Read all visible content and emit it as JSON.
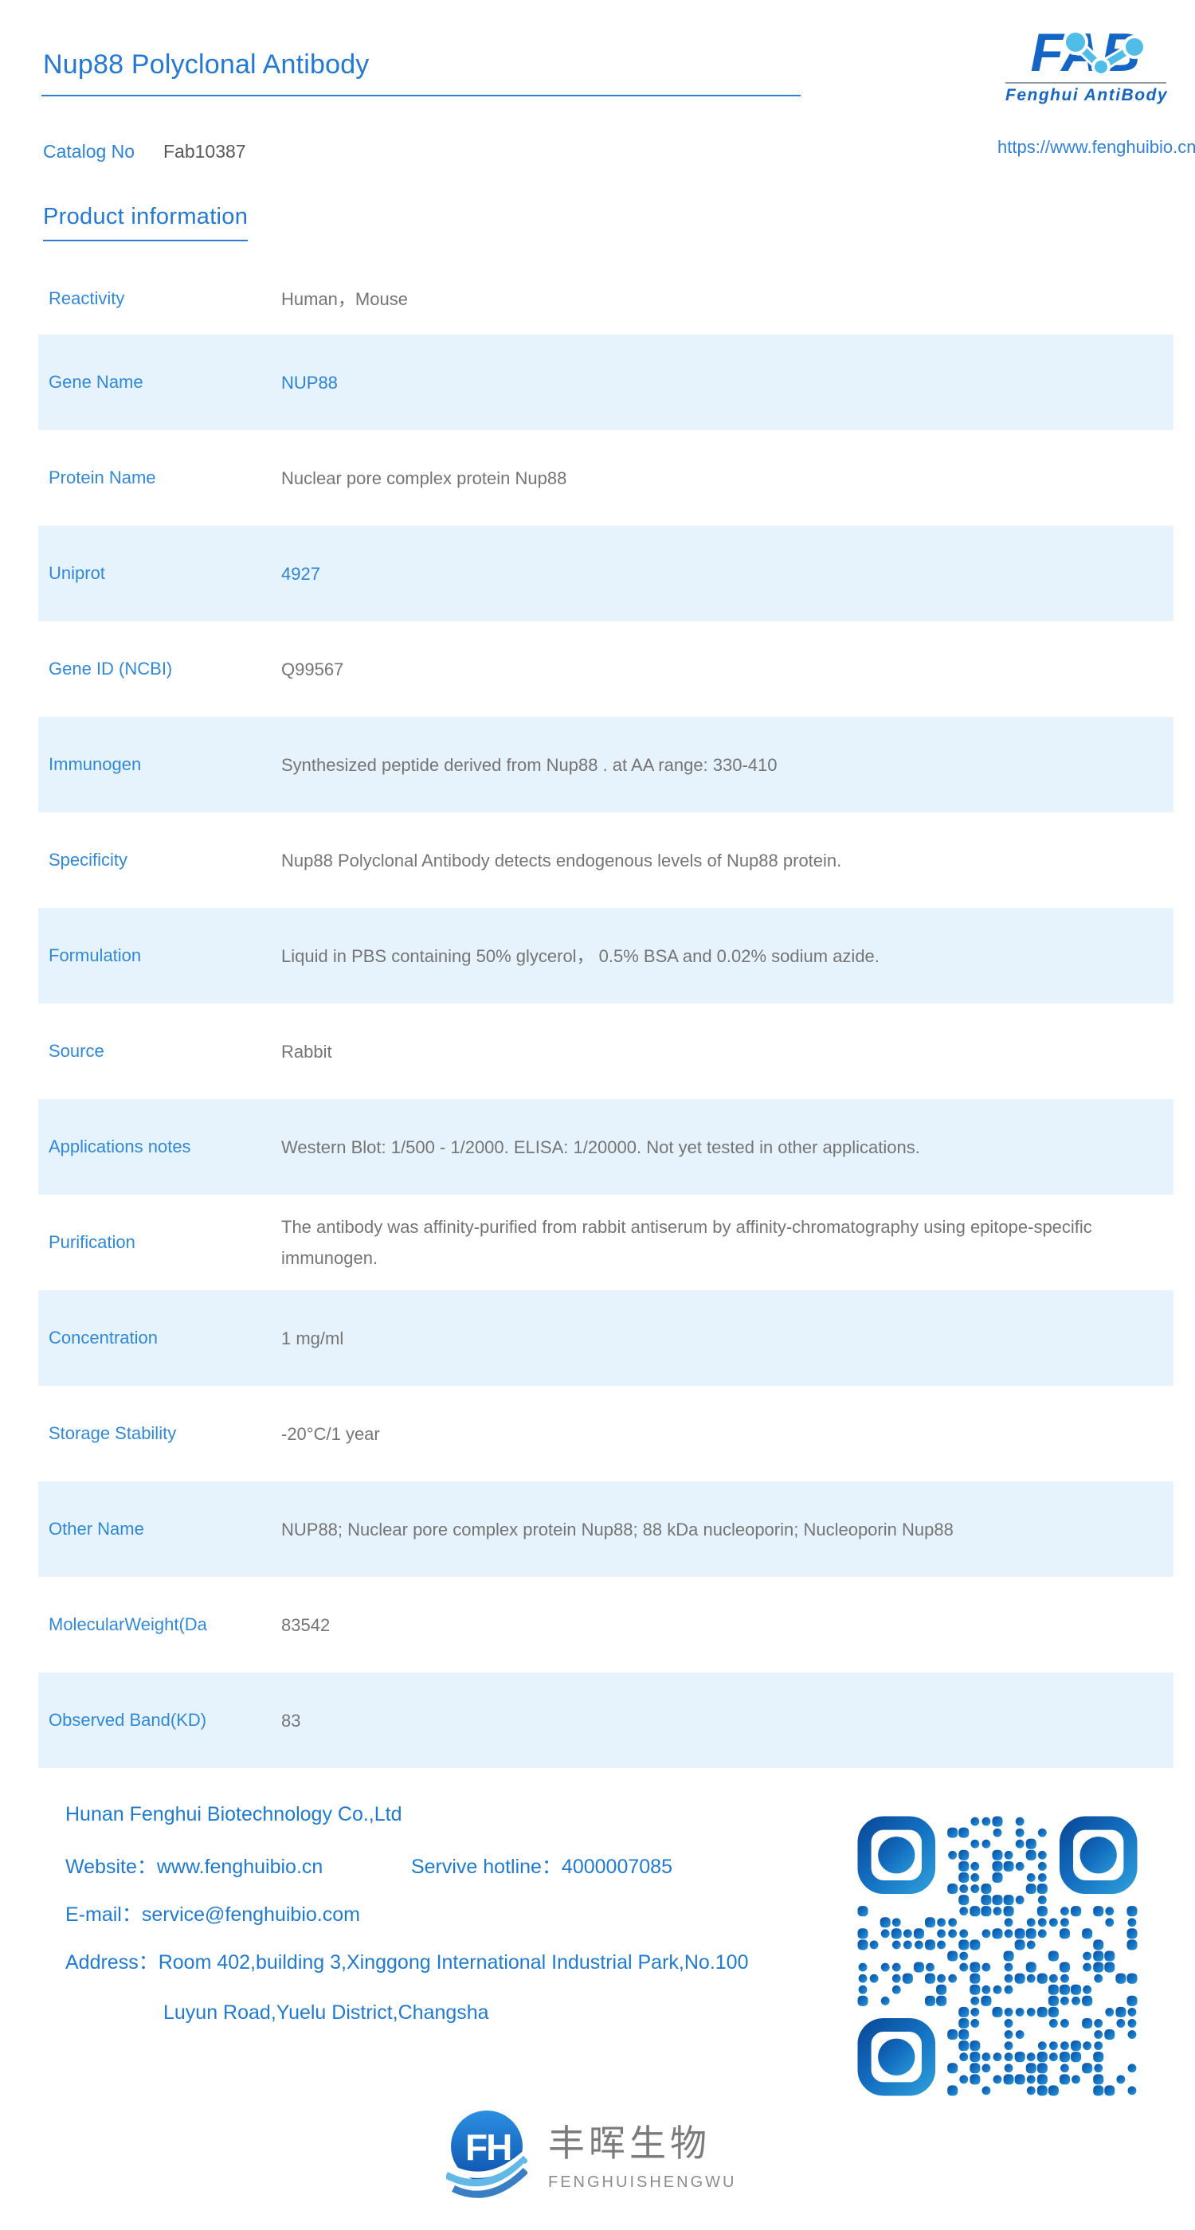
{
  "header": {
    "title": "Nup88 Polyclonal Antibody",
    "catalog_label": "Catalog No",
    "catalog_value": "Fab10387",
    "section_heading": "Product information"
  },
  "brand": {
    "logo_text": "FAB",
    "logo_subtitle": "Fenghui AntiBody",
    "website_url": "https://www.fenghuibio.cn",
    "logo_blue": "#1565c4",
    "molecule_blue": "#4fbde8"
  },
  "table": {
    "rows": [
      {
        "label": "Reactivity",
        "value": "Human，Mouse"
      },
      {
        "label": "Gene Name",
        "value": "NUP88"
      },
      {
        "label": "Protein Name",
        "value": "Nuclear pore complex protein Nup88"
      },
      {
        "label": "Uniprot",
        "value": "4927"
      },
      {
        "label": "Gene ID (NCBI)",
        "value": "Q99567"
      },
      {
        "label": "Immunogen",
        "value": "Synthesized peptide derived from Nup88 . at AA range: 330-410"
      },
      {
        "label": "Specificity",
        "value": "Nup88 Polyclonal Antibody detects endogenous levels of Nup88 protein."
      },
      {
        "label": "Formulation",
        "value": "Liquid in PBS containing 50% glycerol， 0.5% BSA and 0.02% sodium azide."
      },
      {
        "label": "Source",
        "value": "Rabbit"
      },
      {
        "label": "Applications notes",
        "value": "Western Blot: 1/500 - 1/2000. ELISA: 1/20000. Not yet tested in other applications."
      },
      {
        "label": "Purification",
        "value": "The antibody was affinity-purified from rabbit antiserum by affinity-chromatography using epitope-specific immunogen."
      },
      {
        "label": "Concentration",
        "value": "1 mg/ml"
      },
      {
        "label": "Storage Stability",
        "value": "-20°C/1 year"
      },
      {
        "label": "Other Name",
        "value": "NUP88; Nuclear pore complex protein Nup88; 88 kDa nucleoporin; Nucleoporin Nup88"
      },
      {
        "label": "MolecularWeight(Da",
        "value": "83542"
      },
      {
        "label": "Observed Band(KD)",
        "value": "83"
      }
    ],
    "label_color": "#3089d8",
    "value_color": "#757575",
    "alt_row_bg": "#e6f3fc"
  },
  "footer": {
    "company": "Hunan Fenghui Biotechnology Co.,Ltd",
    "website": "Website：www.fenghuibio.cn",
    "hotline": "Servive hotline：4000007085",
    "email": "E-mail：service@fenghuibio.com",
    "address_line1": "Address：Room 402,building 3,Xinggong International Industrial Park,No.100",
    "address_line2": "Luyun Road,Yuelu District,Changsha",
    "qr_icon": "qr-code",
    "text_color": "#1f7ad2"
  },
  "bottom_logo": {
    "monogram": "FH",
    "cn_name": "丰晖生物",
    "en_name": "FENGHUISHENGWU"
  }
}
